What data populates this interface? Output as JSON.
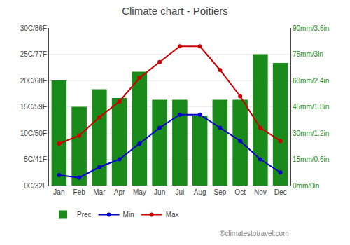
{
  "chart_data": {
    "type": "bar",
    "title": "Climate chart - Poitiers",
    "categories": [
      "Jan",
      "Feb",
      "Mar",
      "Apr",
      "May",
      "Jun",
      "Jul",
      "Aug",
      "Sep",
      "Oct",
      "Nov",
      "Dec"
    ],
    "series": [
      {
        "name": "Prec",
        "type": "bar",
        "axis": "y2",
        "color": "#1a8a1a",
        "values": [
          60,
          45,
          55,
          50,
          65,
          49,
          49,
          40,
          49,
          49,
          75,
          70
        ]
      },
      {
        "name": "Min",
        "type": "line",
        "color": "#0000cc",
        "marker": "circle",
        "line_style": "solid",
        "values": [
          2.0,
          1.5,
          3.5,
          5.0,
          8.0,
          11.0,
          13.5,
          13.5,
          11.0,
          8.5,
          5.0,
          2.5
        ]
      },
      {
        "name": "Max",
        "type": "line",
        "color": "#cc0000",
        "marker": "circle",
        "line_style": "solid",
        "values": [
          8.0,
          9.5,
          13.0,
          16.0,
          20.5,
          23.5,
          26.5,
          26.5,
          22.0,
          17.0,
          11.0,
          8.5
        ]
      }
    ],
    "ylim": [
      0,
      30
    ],
    "yticks": [
      {
        "value": 0,
        "label": "0C/32F"
      },
      {
        "value": 5,
        "label": "5C/41F"
      },
      {
        "value": 10,
        "label": "10C/50F"
      },
      {
        "value": 15,
        "label": "15C/59F"
      },
      {
        "value": 20,
        "label": "20C/68F"
      },
      {
        "value": 25,
        "label": "25C/77F"
      },
      {
        "value": 30,
        "label": "30C/86F"
      }
    ],
    "y2lim": [
      0,
      90
    ],
    "y2ticks": [
      {
        "value": 0,
        "label": "0mm/0in"
      },
      {
        "value": 15,
        "label": "15mm/0.6in"
      },
      {
        "value": 30,
        "label": "30mm/1.2in"
      },
      {
        "value": 45,
        "label": "45mm/1.8in"
      },
      {
        "value": 60,
        "label": "60mm/2.4in"
      },
      {
        "value": 75,
        "label": "75mm/3in"
      },
      {
        "value": 90,
        "label": "90mm/3.6in"
      }
    ],
    "grid": true,
    "legend": "lower left",
    "annotations": [
      "®climatestotravel.com"
    ]
  }
}
